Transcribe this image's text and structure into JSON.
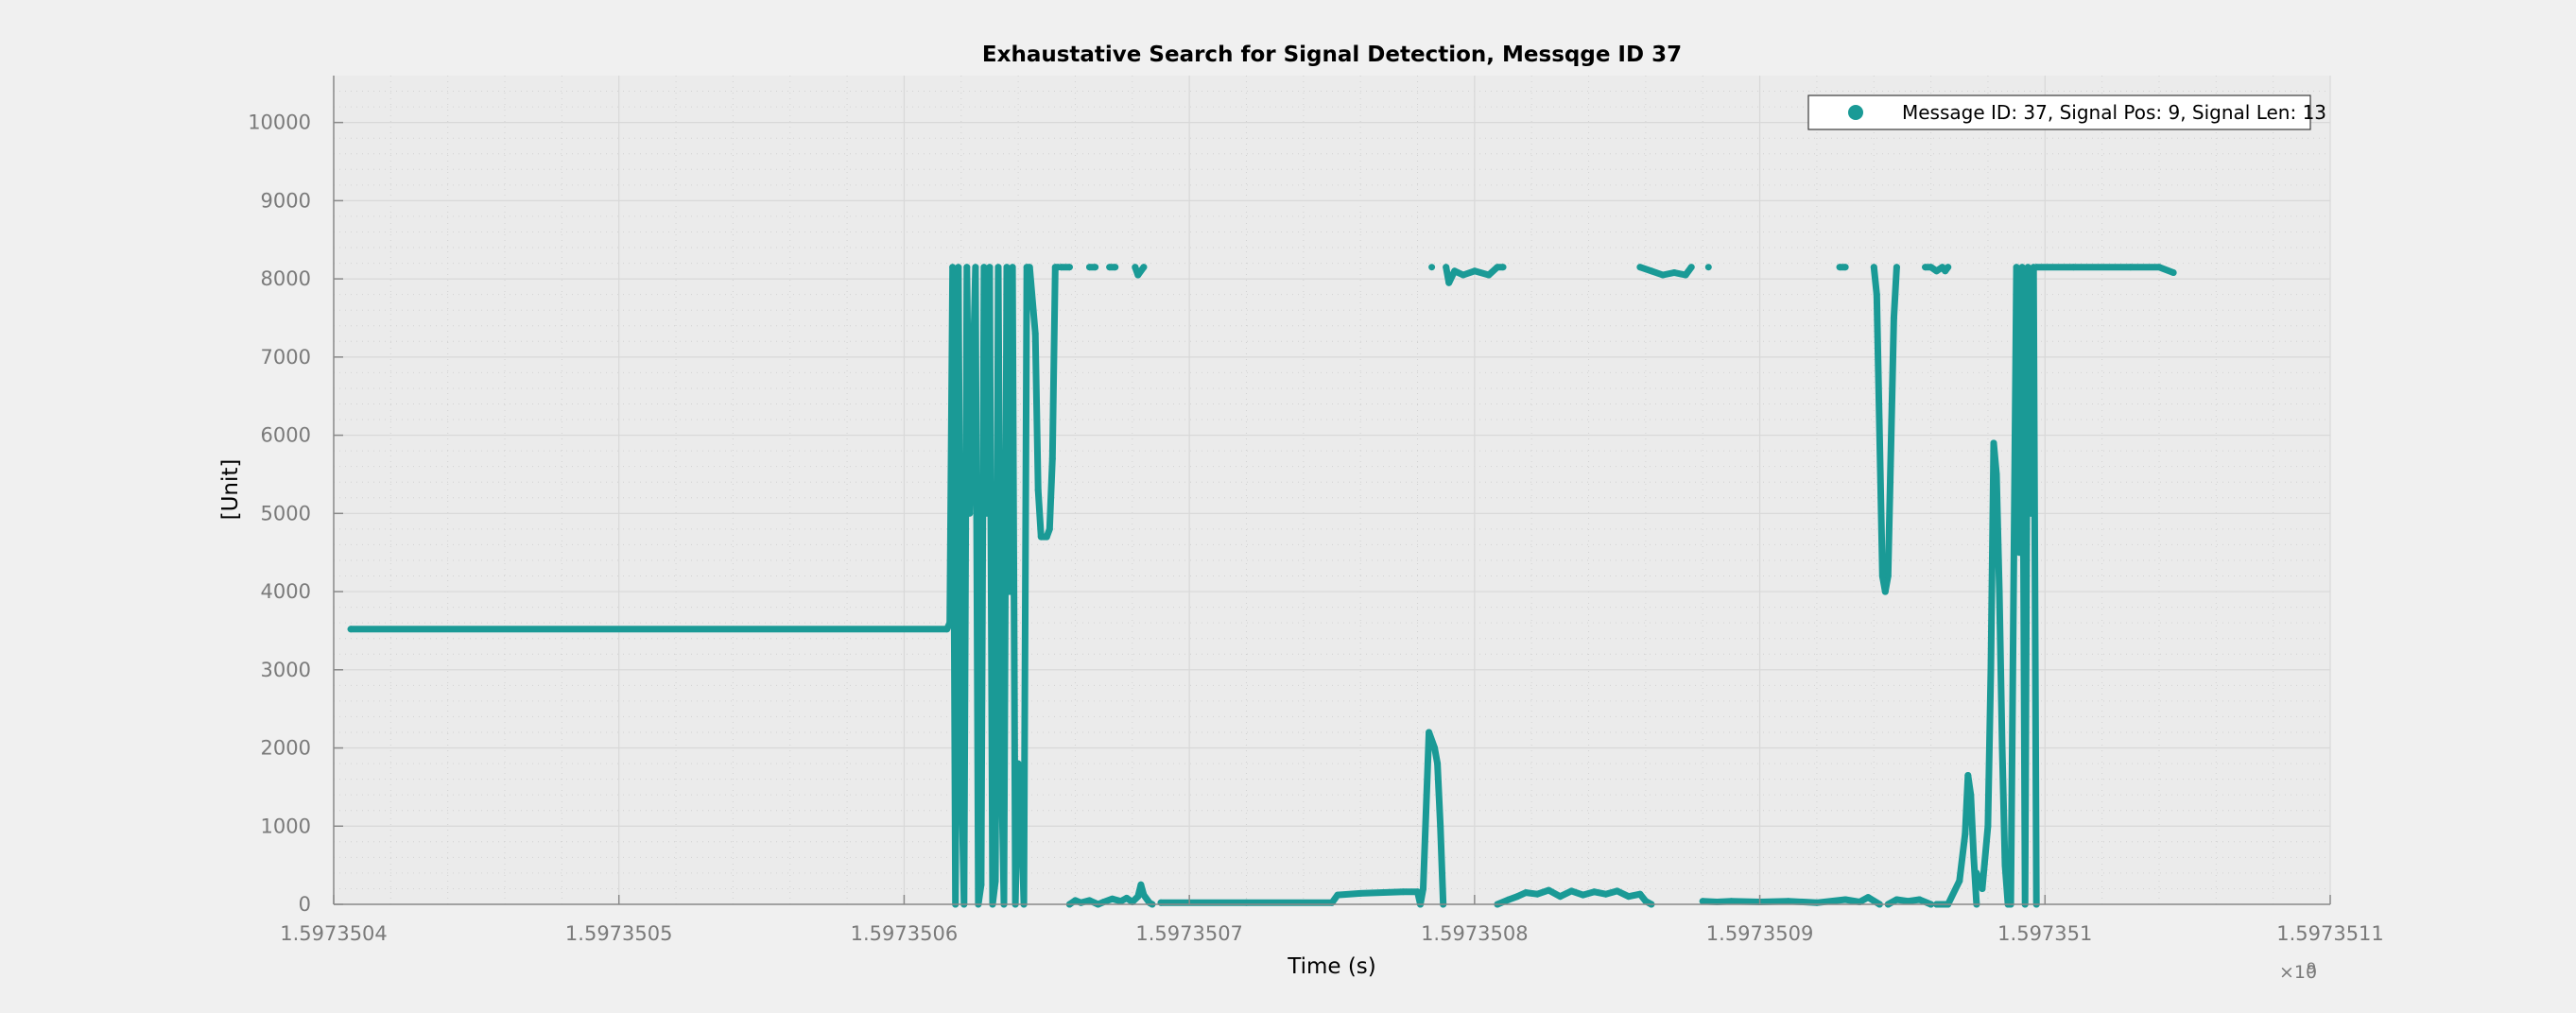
{
  "chart_data": {
    "type": "scatter",
    "title": "Exhaustative Search for Signal Detection, Messqge ID 37",
    "xlabel": "Time (s)",
    "ylabel": "[Unit]",
    "x_exponent_label": "×10",
    "x_exponent_power": "9",
    "xlim": [
      0,
      7
    ],
    "ylim": [
      0,
      10600
    ],
    "x_ticks": [
      0,
      1,
      2,
      3,
      4,
      5,
      6,
      7
    ],
    "x_tick_labels": [
      "1.5973504",
      "1.5973505",
      "1.5973506",
      "1.5973507",
      "1.5973508",
      "1.5973509",
      "1.597351",
      "1.5973511"
    ],
    "y_ticks": [
      0,
      1000,
      2000,
      3000,
      4000,
      5000,
      6000,
      7000,
      8000,
      9000,
      10000
    ],
    "y_tick_labels": [
      "0",
      "1000",
      "2000",
      "3000",
      "4000",
      "5000",
      "6000",
      "7000",
      "8000",
      "9000",
      "10000"
    ],
    "grid": true,
    "legend_position": "top-right",
    "series": [
      {
        "name": "Message ID: 37, Signal Pos: 9, Signal Len: 13",
        "color": "#1a9a96",
        "segments": [
          [
            [
              0.06,
              3520
            ],
            [
              2.15,
              3520
            ],
            [
              2.16,
              3600
            ],
            [
              2.17,
              8150
            ],
            [
              2.18,
              0
            ],
            [
              2.19,
              8150
            ],
            [
              2.2,
              1800
            ],
            [
              2.21,
              0
            ],
            [
              2.22,
              8150
            ],
            [
              2.23,
              5000
            ],
            [
              2.25,
              8150
            ],
            [
              2.26,
              0
            ],
            [
              2.27,
              250
            ],
            [
              2.28,
              8150
            ],
            [
              2.29,
              5000
            ],
            [
              2.3,
              8150
            ],
            [
              2.31,
              0
            ],
            [
              2.32,
              300
            ],
            [
              2.33,
              8150
            ],
            [
              2.34,
              2000
            ],
            [
              2.35,
              0
            ],
            [
              2.36,
              8150
            ],
            [
              2.37,
              4000
            ],
            [
              2.38,
              8150
            ],
            [
              2.39,
              0
            ],
            [
              2.4,
              1800
            ],
            [
              2.41,
              1200
            ],
            [
              2.42,
              0
            ],
            [
              2.43,
              8150
            ],
            [
              2.44,
              8150
            ],
            [
              2.46,
              7300
            ],
            [
              2.47,
              5300
            ],
            [
              2.48,
              4700
            ],
            [
              2.5,
              4700
            ],
            [
              2.51,
              4800
            ],
            [
              2.52,
              5700
            ],
            [
              2.53,
              8150
            ],
            [
              2.54,
              8150
            ]
          ],
          [
            [
              2.55,
              8150
            ],
            [
              2.58,
              8150
            ]
          ],
          [
            [
              2.65,
              8150
            ],
            [
              2.67,
              8150
            ]
          ],
          [
            [
              2.72,
              8150
            ],
            [
              2.74,
              8150
            ]
          ],
          [
            [
              2.81,
              8150
            ],
            [
              2.82,
              8050
            ],
            [
              2.84,
              8150
            ]
          ],
          [
            [
              2.58,
              0
            ],
            [
              2.6,
              50
            ],
            [
              2.62,
              20
            ],
            [
              2.65,
              50
            ],
            [
              2.68,
              0
            ],
            [
              2.7,
              30
            ],
            [
              2.73,
              70
            ],
            [
              2.76,
              40
            ],
            [
              2.78,
              80
            ],
            [
              2.8,
              30
            ],
            [
              2.82,
              100
            ],
            [
              2.83,
              250
            ],
            [
              2.84,
              120
            ],
            [
              2.86,
              20
            ],
            [
              2.87,
              0
            ]
          ],
          [
            [
              2.9,
              20
            ],
            [
              3.2,
              20
            ],
            [
              3.5,
              20
            ],
            [
              3.52,
              120
            ],
            [
              3.6,
              140
            ],
            [
              3.75,
              160
            ],
            [
              3.8,
              160
            ],
            [
              3.81,
              0
            ],
            [
              3.82,
              200
            ],
            [
              3.84,
              2200
            ],
            [
              3.86,
              2000
            ],
            [
              3.87,
              1800
            ],
            [
              3.88,
              1000
            ],
            [
              3.89,
              0
            ]
          ],
          [
            [
              3.85,
              8150
            ]
          ],
          [
            [
              3.9,
              8150
            ],
            [
              3.91,
              7950
            ],
            [
              3.93,
              8100
            ],
            [
              3.96,
              8050
            ],
            [
              4.0,
              8100
            ],
            [
              4.05,
              8050
            ],
            [
              4.08,
              8150
            ],
            [
              4.1,
              8150
            ]
          ],
          [
            [
              4.08,
              0
            ],
            [
              4.12,
              60
            ],
            [
              4.15,
              100
            ],
            [
              4.18,
              150
            ],
            [
              4.22,
              130
            ],
            [
              4.26,
              180
            ],
            [
              4.3,
              100
            ],
            [
              4.34,
              170
            ],
            [
              4.38,
              120
            ],
            [
              4.42,
              160
            ],
            [
              4.46,
              130
            ],
            [
              4.5,
              170
            ],
            [
              4.54,
              100
            ],
            [
              4.58,
              130
            ],
            [
              4.6,
              40
            ],
            [
              4.62,
              0
            ]
          ],
          [
            [
              4.58,
              8150
            ],
            [
              4.62,
              8100
            ],
            [
              4.66,
              8050
            ],
            [
              4.7,
              8080
            ],
            [
              4.74,
              8050
            ],
            [
              4.76,
              8150
            ]
          ],
          [
            [
              4.82,
              8150
            ]
          ],
          [
            [
              4.8,
              40
            ],
            [
              4.85,
              30
            ],
            [
              4.9,
              40
            ],
            [
              5.0,
              30
            ],
            [
              5.1,
              40
            ],
            [
              5.2,
              20
            ],
            [
              5.3,
              60
            ],
            [
              5.35,
              30
            ],
            [
              5.38,
              90
            ],
            [
              5.42,
              0
            ]
          ],
          [
            [
              5.28,
              8150
            ],
            [
              5.3,
              8150
            ]
          ],
          [
            [
              5.4,
              8150
            ],
            [
              5.41,
              7800
            ],
            [
              5.43,
              4200
            ],
            [
              5.44,
              4000
            ],
            [
              5.45,
              4200
            ],
            [
              5.47,
              7500
            ],
            [
              5.48,
              8150
            ]
          ],
          [
            [
              5.45,
              0
            ],
            [
              5.48,
              60
            ],
            [
              5.52,
              40
            ],
            [
              5.56,
              60
            ],
            [
              5.6,
              0
            ]
          ],
          [
            [
              5.58,
              8150
            ],
            [
              5.6,
              8150
            ],
            [
              5.62,
              8100
            ],
            [
              5.64,
              8150
            ],
            [
              5.65,
              8100
            ],
            [
              5.66,
              8150
            ]
          ],
          [
            [
              5.62,
              0
            ],
            [
              5.66,
              0
            ],
            [
              5.7,
              300
            ],
            [
              5.72,
              900
            ],
            [
              5.73,
              1650
            ],
            [
              5.74,
              1400
            ],
            [
              5.75,
              600
            ],
            [
              5.76,
              0
            ]
          ],
          [
            [
              5.76,
              400
            ],
            [
              5.78,
              200
            ],
            [
              5.8,
              1000
            ],
            [
              5.81,
              3000
            ],
            [
              5.82,
              5900
            ],
            [
              5.83,
              5500
            ],
            [
              5.84,
              4000
            ],
            [
              5.85,
              2000
            ],
            [
              5.86,
              500
            ],
            [
              5.87,
              0
            ],
            [
              5.88,
              0
            ],
            [
              5.9,
              8150
            ],
            [
              5.91,
              4500
            ],
            [
              5.92,
              8150
            ],
            [
              5.93,
              0
            ],
            [
              5.94,
              8150
            ],
            [
              5.95,
              5000
            ],
            [
              5.96,
              8150
            ],
            [
              5.97,
              0
            ]
          ],
          [
            [
              5.97,
              8150
            ],
            [
              6.1,
              8150
            ],
            [
              6.3,
              8150
            ],
            [
              6.4,
              8150
            ],
            [
              6.45,
              8080
            ]
          ]
        ]
      }
    ]
  }
}
